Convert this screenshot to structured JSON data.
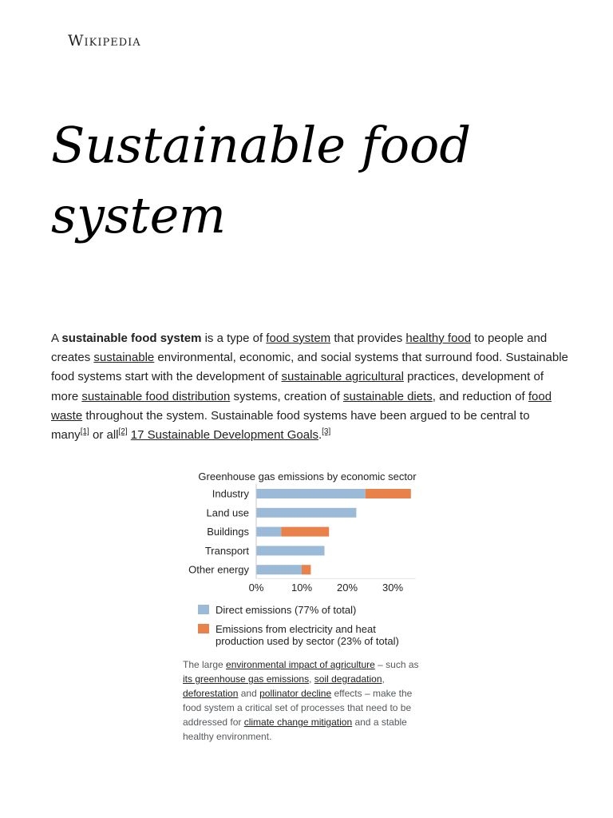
{
  "site": {
    "logo_text": "Wikipedia"
  },
  "article": {
    "title": "Sustainable food system",
    "lead": {
      "t1": "A ",
      "bold": "sustainable food system",
      "t2": " is a type of ",
      "link_food_system": "food system",
      "t3": " that provides ",
      "link_healthy_food": "healthy food",
      "t4": " to people and creates ",
      "link_sustainable": "sustainable",
      "t5": " environmental, economic, and social systems that surround food. Sustainable food systems start with the development of ",
      "link_sustainable_agricultural": "sustainable agricultural",
      "t6": " practices, development of more ",
      "link_sustainable_food_distribution": "sustainable food distribution",
      "t7": " systems, creation of ",
      "link_sustainable_diets": "sustainable diets",
      "t8": ", and reduction of ",
      "link_food_waste": "food waste",
      "t9": " throughout the system. Sustainable food systems have been argued to be central to many",
      "ref1": "[1]",
      "t10": " or all",
      "ref2": "[2]",
      "t11": " ",
      "link_sdg": "17 Sustainable Development Goals",
      "t12": ".",
      "ref3": "[3]"
    }
  },
  "figure": {
    "caption": {
      "t1": "The large ",
      "link_env_impact": "environmental impact of agriculture",
      "t2": " – such as ",
      "link_ghg": "its greenhouse gas emissions",
      "t3": ", ",
      "link_soil": "soil degradation",
      "t4": ", ",
      "link_deforestation": "deforestation",
      "t5": " and ",
      "link_pollinator": "pollinator decline",
      "t6": " effects – make the food system a critical set of processes that need to be addressed for ",
      "link_climate": "climate change mitigation",
      "t7": " and a stable healthy environment."
    }
  },
  "chart_data": {
    "type": "bar",
    "orientation": "horizontal",
    "stacked": true,
    "title": "Greenhouse gas emissions by economic sector",
    "categories": [
      "Industry",
      "Land use",
      "Buildings",
      "Transport",
      "Other energy"
    ],
    "series": [
      {
        "name": "Direct emissions (77% of total)",
        "color": "#9bbad8",
        "values": [
          24,
          22,
          5.5,
          15,
          10
        ]
      },
      {
        "name": "Emissions from electricity and heat production used by sector (23% of total)",
        "legend_lines": [
          "Emissions from electricity and heat",
          "production used by sector (23% of total)"
        ],
        "color": "#e8824a",
        "values": [
          10,
          0,
          10.5,
          0,
          2
        ]
      }
    ],
    "xlim": [
      0,
      35
    ],
    "xticks": [
      0,
      10,
      20,
      30
    ],
    "xtick_labels": [
      "0%",
      "10%",
      "20%",
      "30%"
    ],
    "grid": false,
    "legend_position": "bottom"
  }
}
